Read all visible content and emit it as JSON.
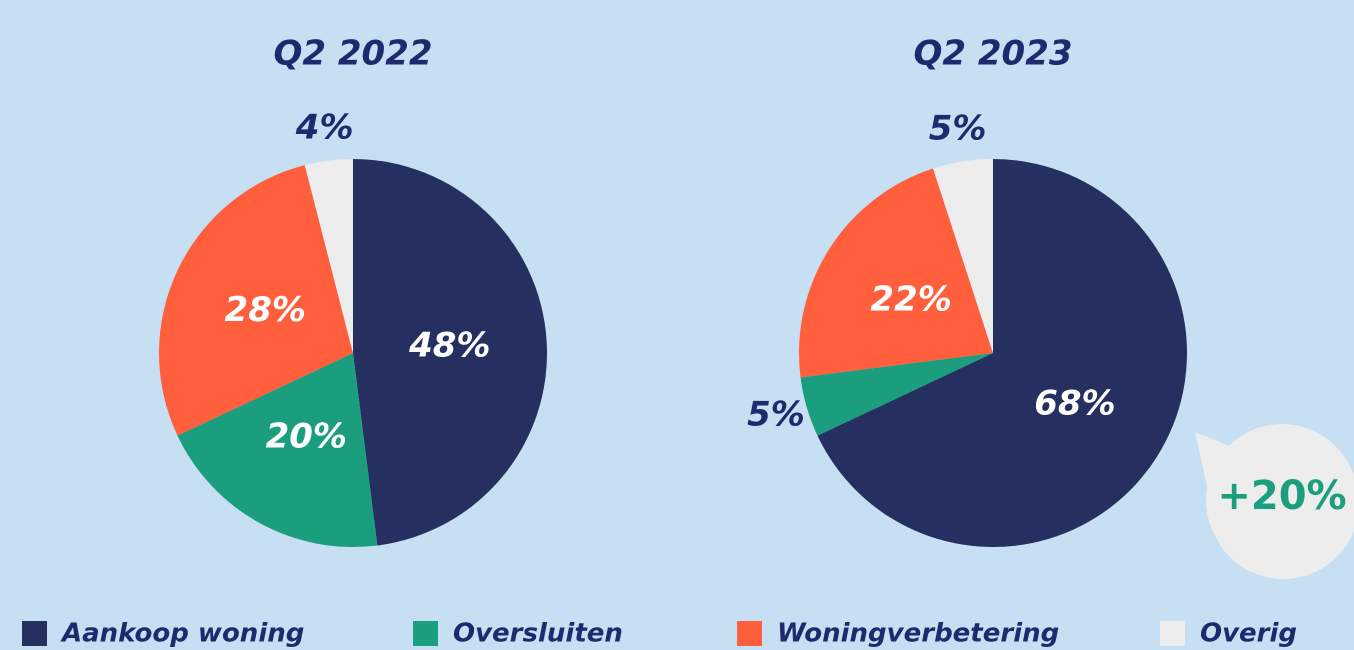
{
  "chart_data": [
    {
      "type": "pie",
      "title": "Q2 2022",
      "values": [
        48,
        20,
        28,
        4
      ],
      "value_labels": [
        "48%",
        "20%",
        "28%",
        "4%"
      ]
    },
    {
      "type": "pie",
      "title": "Q2 2023",
      "values": [
        68,
        5,
        22,
        5
      ],
      "value_labels": [
        "68%",
        "5%",
        "22%",
        "5%"
      ],
      "annotation": "+20%"
    }
  ],
  "legend": {
    "categories": [
      "Aankoop woning",
      "Oversluiten",
      "Woningverbetering",
      "Overig"
    ],
    "colors": [
      "#253060",
      "#1b9e7e",
      "#ff5f3c",
      "#ededed"
    ]
  }
}
